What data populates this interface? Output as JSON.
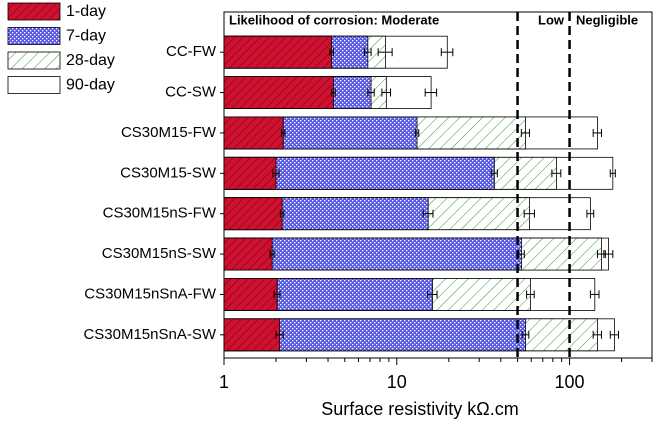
{
  "chart_data": {
    "type": "bar",
    "orientation": "horizontal",
    "overlap": true,
    "xscale": "log",
    "xlabel": "Surface resistivity kΩ.cm",
    "xlim": [
      1,
      300
    ],
    "xticks": [
      1,
      10,
      100
    ],
    "xminor_ticks": [
      2,
      3,
      4,
      5,
      6,
      7,
      8,
      9,
      20,
      30,
      40,
      50,
      60,
      70,
      80,
      90,
      200,
      300
    ],
    "categories": [
      "CC-FW",
      "CC-SW",
      "CS30M15-FW",
      "CS30M15-SW",
      "CS30M15nS-FW",
      "CS30M15nS-SW",
      "CS30M15nSnA-FW",
      "CS30M15nSnA-SW"
    ],
    "series": [
      {
        "name": "1-day",
        "color": "#d0102c",
        "pattern": "crosshatch",
        "values": [
          4.2,
          4.3,
          2.2,
          2.0,
          2.17,
          1.9,
          2.03,
          2.1
        ],
        "errors": [
          0.1,
          0.1,
          0.05,
          0.08,
          0.05,
          0.05,
          0.08,
          0.1
        ]
      },
      {
        "name": "7-day",
        "color": "#5a5ae0",
        "pattern": "dots",
        "values": [
          6.8,
          7.1,
          13.1,
          36.7,
          15.2,
          52.7,
          16.1,
          55.6
        ],
        "errors": [
          0.3,
          0.3,
          0.3,
          1.5,
          1.0,
          2.0,
          1.0,
          2.5
        ]
      },
      {
        "name": "28-day",
        "color": "#3c9a3c",
        "pattern": "hatch",
        "values": [
          8.6,
          8.7,
          55.6,
          84,
          58.6,
          153,
          59.4,
          145
        ],
        "errors": [
          0.8,
          0.5,
          3,
          5,
          4,
          8,
          3,
          8
        ]
      },
      {
        "name": "90-day",
        "color": "#000000",
        "pattern": "none",
        "values": [
          19.6,
          15.8,
          145,
          178,
          132,
          168,
          140,
          182
        ],
        "errors": [
          1.5,
          1.2,
          8,
          6,
          6,
          10,
          8,
          10
        ]
      }
    ],
    "annotations": [
      "Likelihood of corrosion: Moderate",
      "Low",
      "Negligible"
    ],
    "thresholds": [
      50,
      100
    ]
  }
}
